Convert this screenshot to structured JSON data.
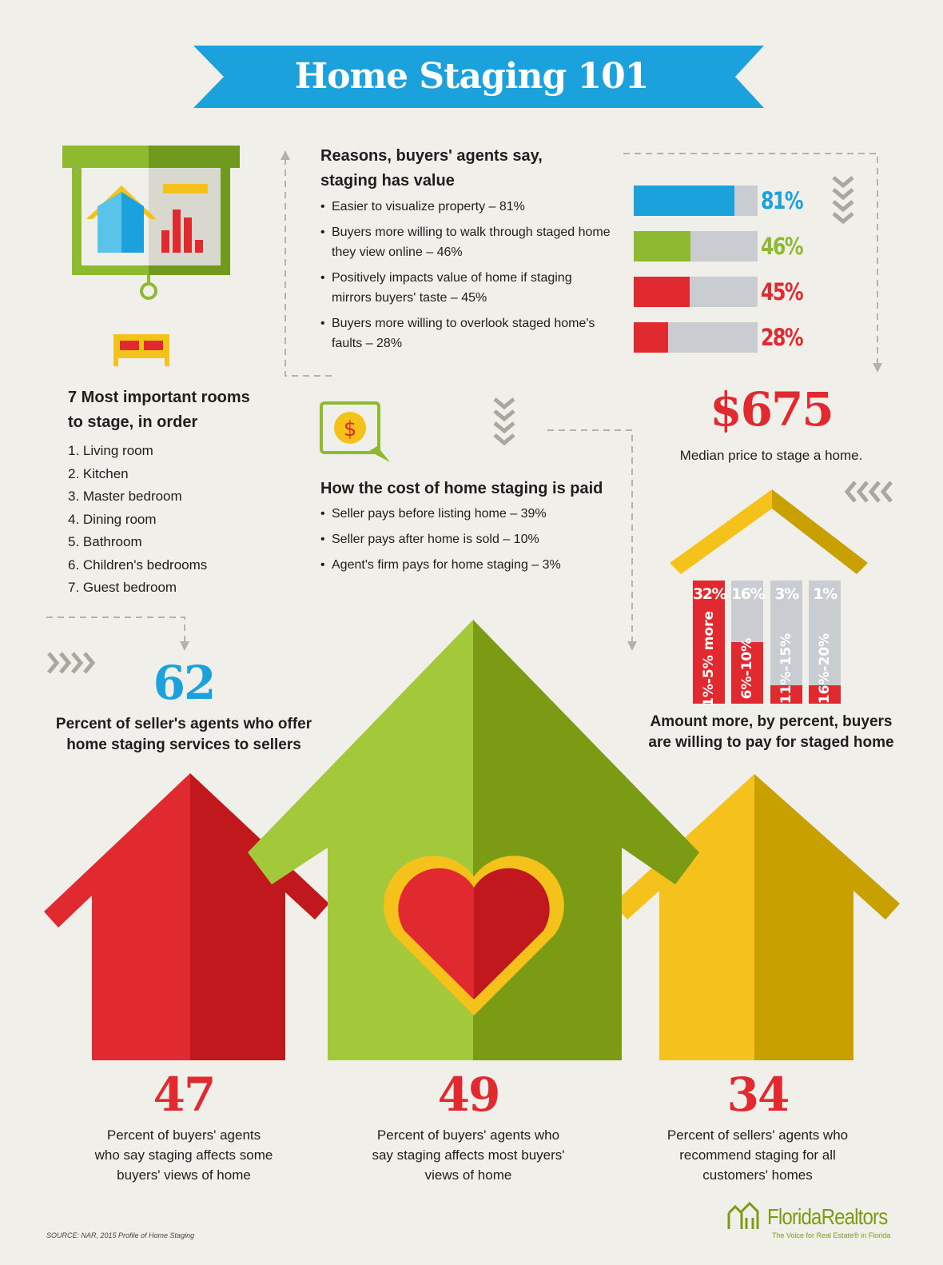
{
  "title": "Home Staging 101",
  "colors": {
    "blue": "#1ba1dc",
    "green": "#8dba2f",
    "red": "#e02a2f",
    "yellow": "#f4c21a",
    "gray": "#c9cdd1",
    "background": "#f0efe9"
  },
  "reasons": {
    "heading_line1": "Reasons, buyers' agents say,",
    "heading_line2": "staging has value",
    "items": [
      {
        "text": "Easier to visualize property – 81%",
        "value": 81,
        "label": "81%",
        "color": "#1ba1dc"
      },
      {
        "text": "Buyers more willing to walk through staged home they view online – 46%",
        "value": 46,
        "label": "46%",
        "color": "#8dba2f"
      },
      {
        "text": "Positively impacts value of home if staging mirrors buyers' taste – 45%",
        "value": 45,
        "label": "45%",
        "color": "#e02a2f"
      },
      {
        "text": "Buyers more willing to overlook staged home's faults – 28%",
        "value": 28,
        "label": "28%",
        "color": "#e02a2f"
      }
    ]
  },
  "rooms": {
    "heading_line1": "7 Most important rooms",
    "heading_line2": "to stage, in order",
    "items": [
      "1. Living room",
      "2. Kitchen",
      "3. Master bedroom",
      "4. Dining room",
      "5. Bathroom",
      "6. Children's bedrooms",
      "7. Guest bedroom"
    ]
  },
  "cost": {
    "heading": "How the cost of home staging is paid",
    "items": [
      "Seller pays before listing home – 39%",
      "Seller pays after home is sold – 10%",
      "Agent's firm pays for home staging – 3%"
    ]
  },
  "median": {
    "value": "$675",
    "caption": "Median price to stage a home."
  },
  "amount_more": {
    "caption_line1": "Amount more, by percent, buyers",
    "caption_line2": "are willing to pay for staged home",
    "columns": [
      {
        "label": "32%",
        "range": "1%-5% more",
        "value": 32
      },
      {
        "label": "16%",
        "range": "6%-10%",
        "value": 16
      },
      {
        "label": "3%",
        "range": "11%-15%",
        "value": 3
      },
      {
        "label": "1%",
        "range": "16%-20%",
        "value": 1
      }
    ]
  },
  "offer": {
    "value": "62",
    "caption_line1": "Percent of seller's agents who offer",
    "caption_line2": "home staging services to sellers"
  },
  "stats": [
    {
      "value": "47",
      "line1": "Percent of buyers' agents",
      "line2": "who say staging affects some",
      "line3": "buyers' views of home"
    },
    {
      "value": "49",
      "line1": "Percent of buyers' agents who",
      "line2": "say staging affects most buyers'",
      "line3": "views of home"
    },
    {
      "value": "34",
      "line1": "Percent of sellers' agents who",
      "line2": "recommend staging for all",
      "line3": "customers' homes"
    }
  ],
  "icons": {
    "presentation": "presentation-board-icon",
    "bed": "bed-icon",
    "money": "money-bubble-icon",
    "heart": "heart-icon",
    "chevrons": "chevron-arrows-icon"
  },
  "source": "SOURCE: NAR, 2015 Profile of Home Staging",
  "logo": {
    "name": "FloridaRealtors",
    "tagline": "The Voice for Real Estate® in Florida"
  }
}
